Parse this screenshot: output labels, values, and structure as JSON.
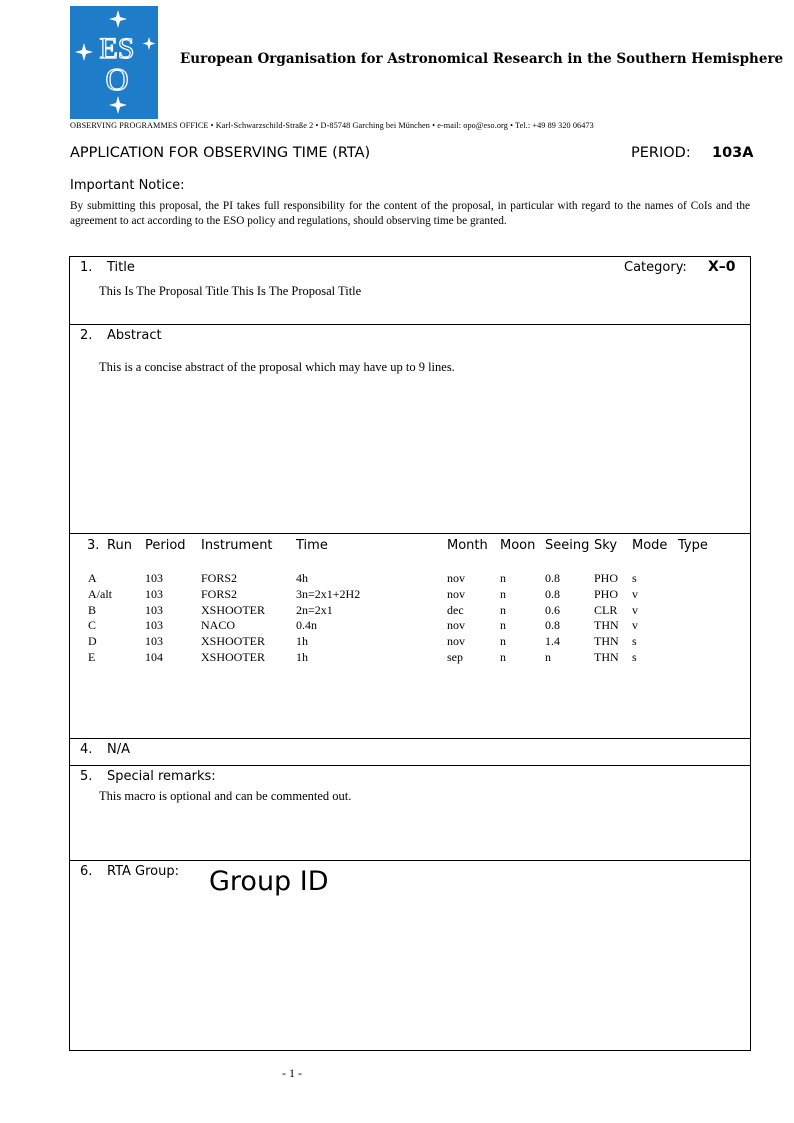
{
  "header": {
    "logo_text": "ESO",
    "org": "European Organisation for Astronomical Research in the Southern Hemisphere",
    "address": "OBSERVING PROGRAMMES OFFICE • Karl-Schwarzschild-Straße 2 • D-85748 Garching bei München • e-mail: opo@eso.org • Tel.: +49 89 320 06473",
    "logo_color": "#1f7cc8"
  },
  "form": {
    "title": "APPLICATION FOR OBSERVING TIME (RTA)",
    "period_label": "PERIOD:",
    "period_value": "103A"
  },
  "notice": {
    "heading": "Important Notice:",
    "text": "By submitting this proposal, the PI takes full responsibility for the content of the proposal, in particular with regard to the names of CoIs and the agreement to act according to the ESO policy and regulations, should observing time be granted."
  },
  "sections": {
    "title": {
      "num": "1.",
      "label": "Title",
      "category_label": "Category:",
      "category_value": "X–0",
      "value": "This Is The Proposal Title This Is The Proposal Title"
    },
    "abstract": {
      "num": "2.",
      "label": "Abstract",
      "value": "This is a concise abstract of the proposal which may have up to 9 lines."
    },
    "runs": {
      "num": "3.",
      "columns": [
        "Run",
        "Period",
        "Instrument",
        "Time",
        "Month",
        "Moon",
        "Seeing",
        "Sky",
        "Mode",
        "Type"
      ],
      "rows": [
        [
          "A",
          "103",
          "FORS2",
          "4h",
          "nov",
          "n",
          "0.8",
          "PHO",
          "s",
          ""
        ],
        [
          "A/alt",
          "103",
          "FORS2",
          "3n=2x1+2H2",
          "nov",
          "n",
          "0.8",
          "PHO",
          "v",
          ""
        ],
        [
          "B",
          "103",
          "XSHOOTER",
          "2n=2x1",
          "dec",
          "n",
          "0.6",
          "CLR",
          "v",
          ""
        ],
        [
          "C",
          "103",
          "NACO",
          "0.4n",
          "nov",
          "n",
          "0.8",
          "THN",
          "v",
          ""
        ],
        [
          "D",
          "103",
          "XSHOOTER",
          "1h",
          "nov",
          "n",
          "1.4",
          "THN",
          "s",
          ""
        ],
        [
          "E",
          "104",
          "XSHOOTER",
          "1h",
          "sep",
          "n",
          "n",
          "THN",
          "s",
          ""
        ]
      ]
    },
    "na": {
      "num": "4.",
      "label": "N/A"
    },
    "remarks": {
      "num": "5.",
      "label": "Special remarks:",
      "value": "This macro is optional and can be commented out."
    },
    "group": {
      "num": "6.",
      "label": "RTA Group:",
      "value": "Group ID"
    }
  },
  "footer": {
    "page": "- 1 -"
  }
}
